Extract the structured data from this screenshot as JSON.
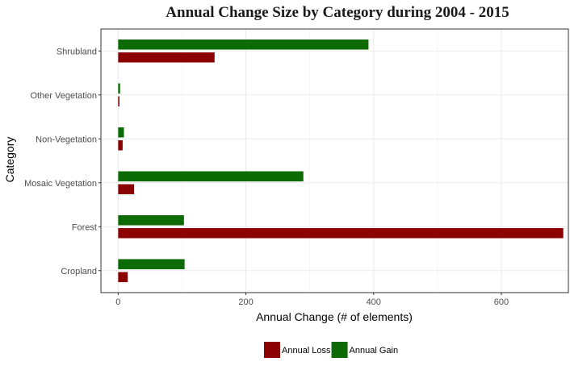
{
  "chart_data": {
    "type": "bar",
    "orientation": "horizontal",
    "title": "Annual Change Size by Category during  2004 - 2015",
    "xlabel": "Annual Change (# of elements)",
    "ylabel": "Category",
    "categories": [
      "Cropland",
      "Forest",
      "Mosaic Vegetation",
      "Non-Vegetation",
      "Other Vegetation",
      "Shrubland"
    ],
    "series": [
      {
        "name": "Annual Loss",
        "color": "#8b0000",
        "values": [
          15,
          697,
          25,
          7,
          2,
          151
        ]
      },
      {
        "name": "Annual Gain",
        "color": "#0d6b06",
        "values": [
          104,
          103,
          290,
          9,
          3,
          392
        ]
      }
    ],
    "xlim": [
      -27,
      705
    ],
    "xticks": [
      0,
      200,
      400,
      600
    ],
    "grid": true,
    "legend_position": "bottom"
  }
}
